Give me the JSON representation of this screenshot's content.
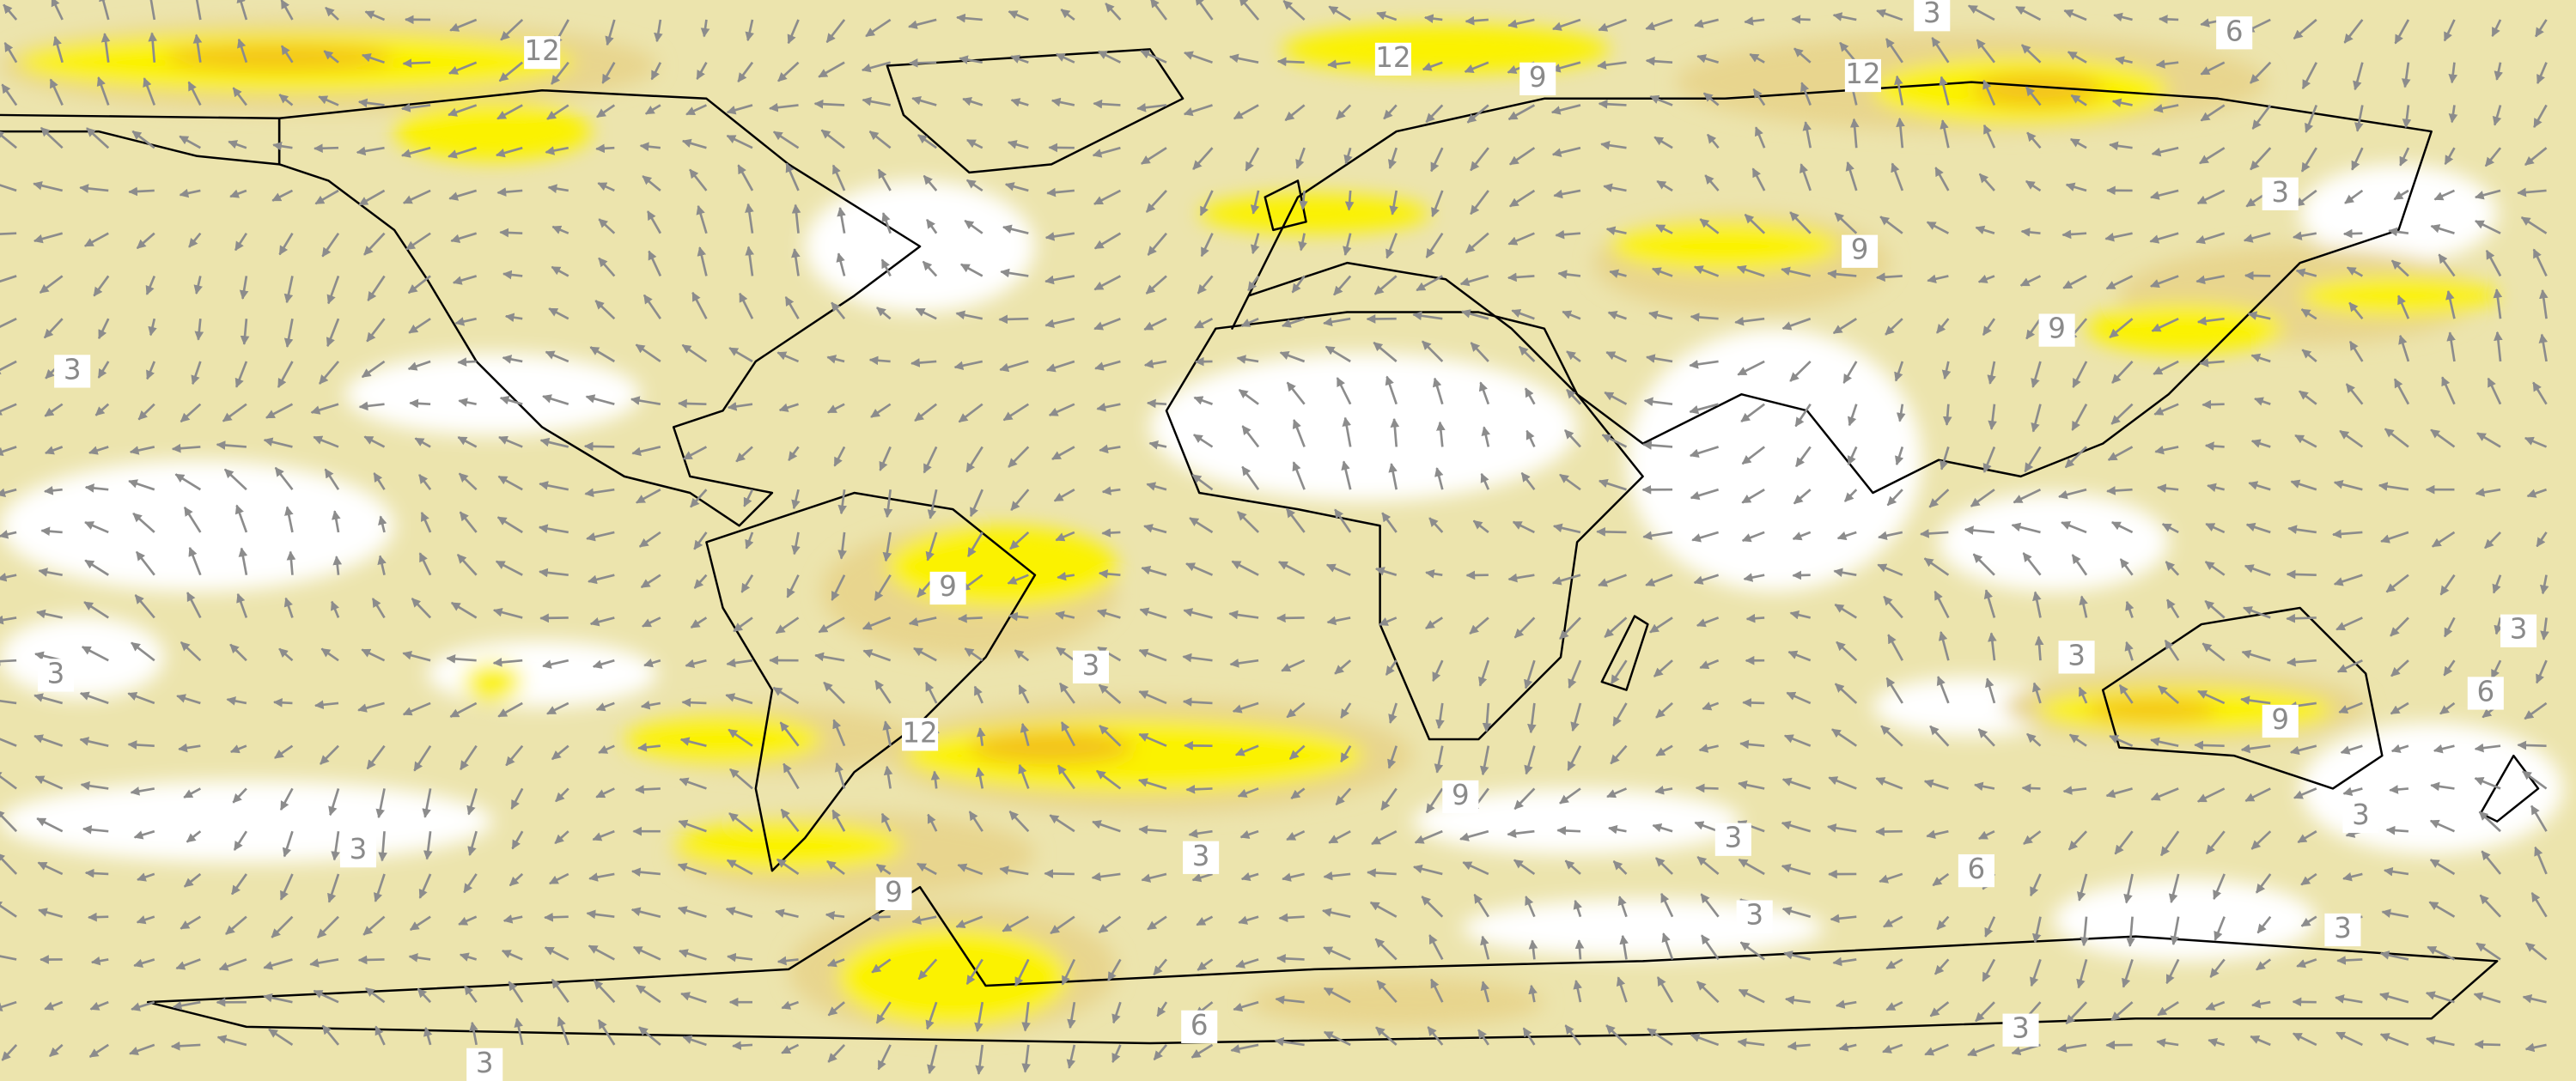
{
  "contour_labels": [
    "12",
    "12",
    "9",
    "12",
    "3",
    "6",
    "3",
    "9",
    "9",
    "3",
    "9",
    "3",
    "3",
    "3",
    "9",
    "6",
    "3",
    "12",
    "9",
    "3",
    "3",
    "3",
    "3",
    "6",
    "9",
    "3",
    "3",
    "6",
    "3",
    "3"
  ]
}
